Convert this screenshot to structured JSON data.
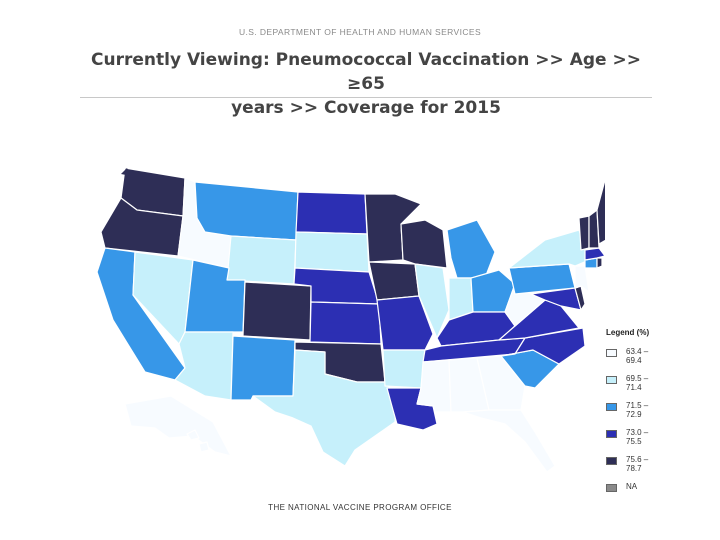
{
  "header": {
    "agency": "U.S. DEPARTMENT OF HEALTH AND HUMAN SERVICES",
    "title_line1": "Currently Viewing:  Pneumococcal Vaccination  >>  Age  >>  ≥65",
    "title_line2": "years  >>  Coverage for 2015"
  },
  "legend": {
    "title": "Legend (%)",
    "items": [
      {
        "label": "63.4 –\n69.4",
        "color": "#f7fbff"
      },
      {
        "label": "69.5 –\n71.4",
        "color": "#c6f0fb"
      },
      {
        "label": "71.5 –\n72.9",
        "color": "#3797e8"
      },
      {
        "label": "73.0 –\n75.5",
        "color": "#2c2fb3"
      },
      {
        "label": "75.6 –\n78.7",
        "color": "#2e2e56"
      },
      {
        "label": "NA",
        "color": "#8a8a8a"
      }
    ]
  },
  "footer": "THE NATIONAL VACCINE PROGRAM OFFICE"
}
